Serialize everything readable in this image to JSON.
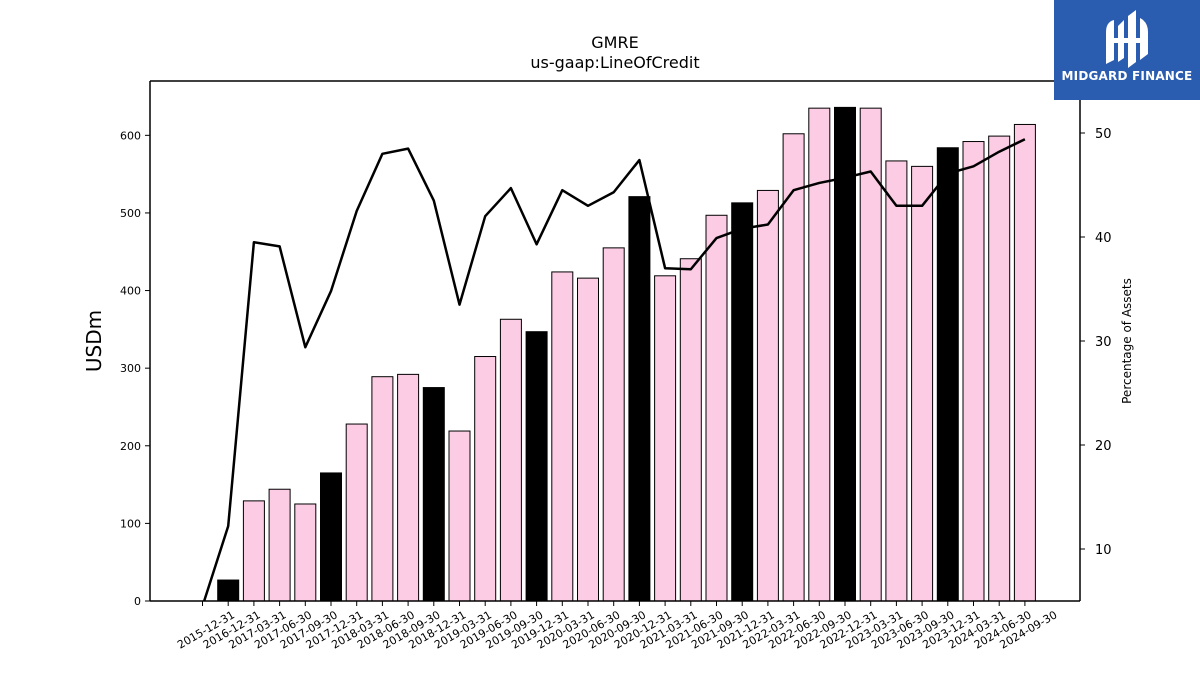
{
  "chart_data": {
    "type": "bar",
    "title": "GMRE",
    "subtitle": "us-gaap:LineOfCredit",
    "ylabel": "USDm",
    "y2label": "Percentage of Assets",
    "ylim": [
      0,
      670
    ],
    "y2lim": [
      5,
      55
    ],
    "yticks": [
      0,
      100,
      200,
      300,
      400,
      500,
      600
    ],
    "y2ticks": [
      10,
      20,
      30,
      40,
      50
    ],
    "categories": [
      "2015-12-31",
      "2016-12-31",
      "2017-03-31",
      "2017-06-30",
      "2017-09-30",
      "2017-12-31",
      "2018-03-31",
      "2018-06-30",
      "2018-09-30",
      "2018-12-31",
      "2019-03-31",
      "2019-06-30",
      "2019-09-30",
      "2019-12-31",
      "2020-03-31",
      "2020-06-30",
      "2020-09-30",
      "2020-12-31",
      "2021-03-31",
      "2021-06-30",
      "2021-09-30",
      "2021-12-31",
      "2022-03-31",
      "2022-06-30",
      "2022-09-30",
      "2022-12-31",
      "2023-03-31",
      "2023-06-30",
      "2023-09-30",
      "2023-12-31",
      "2024-03-31",
      "2024-06-30",
      "2024-09-30"
    ],
    "series": [
      {
        "kind": "bar",
        "values": [
          0,
          27,
          129,
          144,
          125,
          165,
          228,
          289,
          292,
          275,
          219,
          315,
          363,
          347,
          424,
          416,
          455,
          521,
          419,
          441,
          497,
          513,
          529,
          602,
          635,
          636,
          635,
          567,
          560,
          584,
          592,
          599,
          614
        ],
        "year_end": [
          true,
          true,
          false,
          false,
          false,
          true,
          false,
          false,
          false,
          true,
          false,
          false,
          false,
          true,
          false,
          false,
          false,
          true,
          false,
          false,
          false,
          true,
          false,
          false,
          false,
          true,
          false,
          false,
          false,
          true,
          false,
          false,
          false
        ]
      },
      {
        "kind": "line",
        "axis": "right",
        "values": [
          4.5,
          12.2,
          39.5,
          39.1,
          29.4,
          34.8,
          42.5,
          48.0,
          48.5,
          43.5,
          33.5,
          42.0,
          44.7,
          39.3,
          44.5,
          43.0,
          44.3,
          47.4,
          37.0,
          36.9,
          39.9,
          40.8,
          41.2,
          44.5,
          45.2,
          45.7,
          46.3,
          43.0,
          43.0,
          46.1,
          46.8,
          48.2,
          49.4
        ]
      }
    ],
    "colors": {
      "bar_fill": "#fccce4",
      "bar_year_end_fill": "#000000",
      "bar_edge": "#000000",
      "line": "#000000"
    },
    "grid": false
  },
  "logo": {
    "text": "MIDGARD FINANCE",
    "bg": "#2a5db0"
  }
}
